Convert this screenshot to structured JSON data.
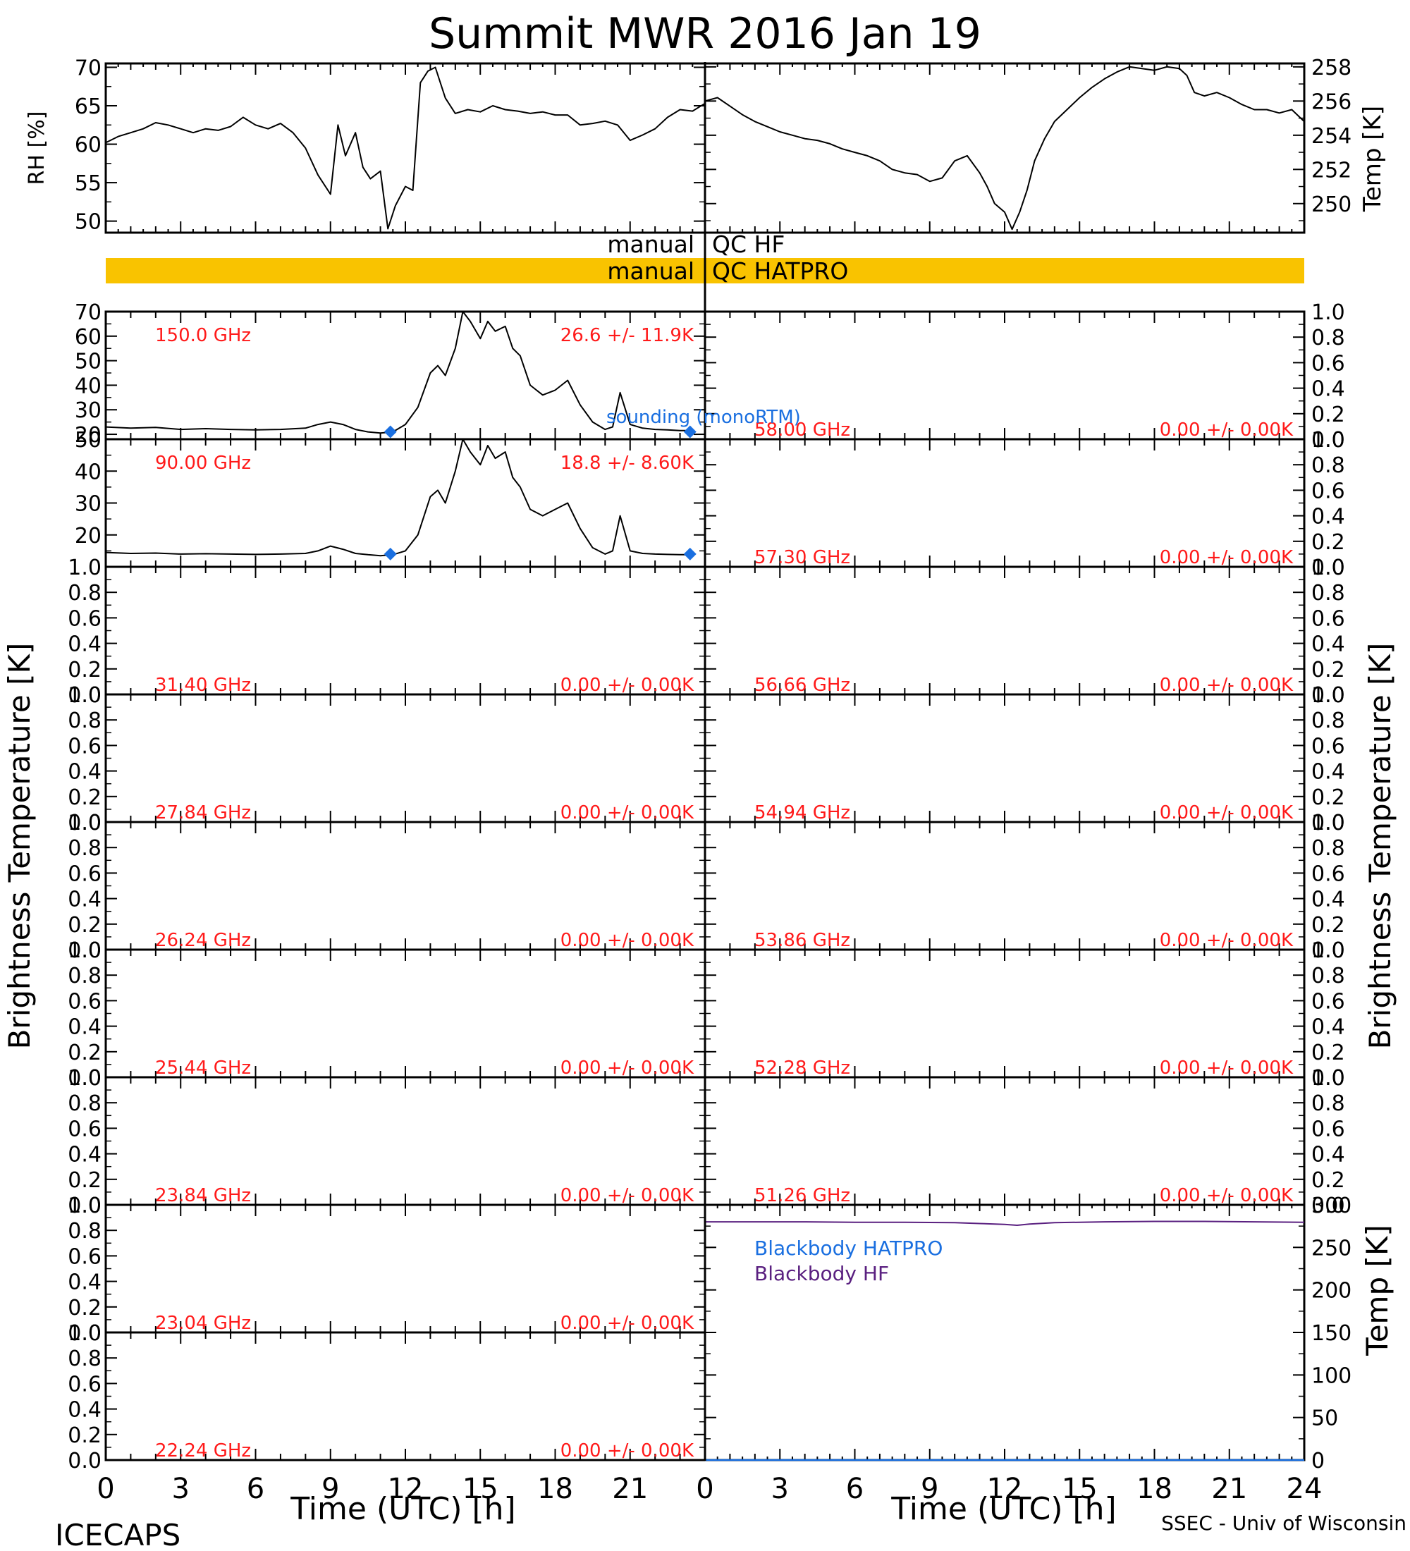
{
  "title": "Summit MWR 2016 Jan 19",
  "footer": {
    "left": "ICECAPS",
    "right": "SSEC - Univ of Wisconsin"
  },
  "colors": {
    "qc_bar": "#f9c300",
    "red_text": "#ff1a1a",
    "blue": "#1a6fe0",
    "purple": "#5a2080",
    "axis": "#000000"
  },
  "chart_data": [
    {
      "type": "line",
      "name": "rh",
      "ylabel": "RH [%]",
      "xlim": [
        0,
        24
      ],
      "ylim": [
        48.5,
        70.5
      ],
      "yticks": [
        50,
        55,
        60,
        65,
        70
      ],
      "x": [
        0,
        0.5,
        1,
        1.5,
        2,
        2.5,
        3,
        3.5,
        4,
        4.5,
        5,
        5.5,
        6,
        6.5,
        7,
        7.5,
        8,
        8.5,
        9,
        9.3,
        9.6,
        10,
        10.3,
        10.6,
        11,
        11.3,
        11.6,
        12,
        12.3,
        12.6,
        12.9,
        13.2,
        13.6,
        14,
        14.5,
        15,
        15.5,
        16,
        16.5,
        17,
        17.5,
        18,
        18.5,
        19,
        19.5,
        20,
        20.5,
        21,
        21.5,
        22,
        22.5,
        23,
        23.5,
        24
      ],
      "values": [
        60.2,
        61,
        61.5,
        62,
        62.8,
        62.5,
        62,
        61.5,
        62,
        61.8,
        62.3,
        63.5,
        62.5,
        62,
        62.7,
        61.5,
        59.5,
        56,
        53.5,
        62.5,
        58.5,
        61.5,
        57,
        55.5,
        56.5,
        49,
        52,
        54.5,
        54,
        68,
        69.5,
        70,
        66,
        64,
        64.5,
        64.2,
        65,
        64.5,
        64.3,
        64,
        64.2,
        63.8,
        63.8,
        62.5,
        62.7,
        63,
        62.5,
        60.5,
        61.2,
        62,
        63.5,
        64.5,
        64.3,
        65.3
      ]
    },
    {
      "type": "line",
      "name": "temp",
      "ylabel": "Temp [K]",
      "xlim": [
        0,
        24
      ],
      "ylim": [
        248.3,
        258.2
      ],
      "yticks": [
        250,
        252,
        254,
        256,
        258
      ],
      "x": [
        0,
        0.5,
        1,
        1.5,
        2,
        2.5,
        3,
        3.5,
        4,
        4.5,
        5,
        5.5,
        6,
        6.5,
        7,
        7.5,
        8,
        8.5,
        9,
        9.5,
        10,
        10.5,
        11,
        11.3,
        11.6,
        12,
        12.3,
        12.6,
        12.9,
        13.2,
        13.6,
        14,
        14.5,
        15,
        15.5,
        16,
        16.5,
        17,
        17.5,
        18,
        18.5,
        19,
        19.3,
        19.6,
        20,
        20.5,
        21,
        21.5,
        22,
        22.5,
        23,
        23.5,
        24
      ],
      "values": [
        256,
        256.2,
        255.7,
        255.2,
        254.8,
        254.5,
        254.2,
        254,
        253.8,
        253.7,
        253.5,
        253.2,
        253,
        252.8,
        252.5,
        252,
        251.8,
        251.7,
        251.3,
        251.5,
        252.5,
        252.8,
        251.8,
        251,
        250,
        249.5,
        248.5,
        249.5,
        250.8,
        252.5,
        253.8,
        254.8,
        255.5,
        256.2,
        256.8,
        257.3,
        257.7,
        258,
        257.9,
        257.8,
        258,
        257.9,
        257.5,
        256.5,
        256.3,
        256.5,
        256.2,
        255.8,
        255.5,
        255.5,
        255.3,
        255.5,
        254.8
      ]
    },
    {
      "type": "line",
      "name": "ch150",
      "freq_label": "150.0 GHz",
      "stat_label": "26.6 +/-  11.9K",
      "ylim": [
        18,
        70
      ],
      "yticks": [
        20,
        30,
        40,
        50,
        60,
        70
      ],
      "x": [
        0,
        1,
        2,
        3,
        4,
        5,
        6,
        7,
        8,
        8.5,
        9,
        9.5,
        10,
        10.5,
        11,
        11.5,
        12,
        12.5,
        13,
        13.3,
        13.6,
        14,
        14.3,
        14.6,
        15,
        15.3,
        15.6,
        16,
        16.3,
        16.6,
        17,
        17.5,
        18,
        18.5,
        19,
        19.5,
        20,
        20.3,
        20.6,
        21,
        21.5,
        22,
        22.5,
        23,
        23.5
      ],
      "values": [
        23,
        22.5,
        22.8,
        22,
        22.3,
        22,
        21.8,
        22,
        22.5,
        24,
        25,
        24,
        22,
        21,
        20.5,
        21,
        24,
        31,
        45,
        48,
        44,
        55,
        70,
        66,
        59,
        66,
        62,
        64,
        55,
        52,
        40,
        36,
        38,
        42,
        32,
        25,
        22,
        23,
        37,
        24,
        22.5,
        22,
        21.8,
        21.5,
        21.5
      ],
      "markers": {
        "x": [
          11.4,
          23.4
        ],
        "values": [
          21,
          21
        ]
      },
      "marker_label": "sounding (monoRTM)"
    },
    {
      "type": "line",
      "name": "ch90",
      "freq_label": "90.00 GHz",
      "stat_label": "18.8 +/-  8.60K",
      "ylim": [
        10,
        50
      ],
      "yticks": [
        20,
        30,
        40,
        50
      ],
      "x": [
        0,
        1,
        2,
        3,
        4,
        5,
        6,
        7,
        8,
        8.5,
        9,
        9.5,
        10,
        10.5,
        11,
        11.5,
        12,
        12.5,
        13,
        13.3,
        13.6,
        14,
        14.3,
        14.6,
        15,
        15.3,
        15.6,
        16,
        16.3,
        16.6,
        17,
        17.5,
        18,
        18.5,
        19,
        19.5,
        20,
        20.3,
        20.6,
        21,
        21.5,
        22,
        22.5,
        23,
        23.5
      ],
      "values": [
        14.5,
        14.2,
        14.3,
        14,
        14.1,
        14,
        13.9,
        14,
        14.2,
        15,
        16.5,
        15.5,
        14.2,
        13.8,
        13.5,
        13.8,
        15,
        20,
        32,
        34,
        30,
        40,
        50,
        46,
        42,
        48,
        44,
        46,
        38,
        35,
        28,
        26,
        28,
        30,
        22,
        16,
        14,
        15,
        26,
        15,
        14.2,
        14,
        13.9,
        13.8,
        13.8
      ],
      "markers": {
        "x": [
          11.4,
          23.4
        ],
        "values": [
          14,
          14
        ]
      }
    },
    {
      "type": "line",
      "name": "ch3140",
      "freq_label": "31.40 GHz",
      "stat_label": "0.00 +/-  0.00K",
      "ylim": [
        0,
        1
      ],
      "yticks": [
        0.0,
        0.2,
        0.4,
        0.6,
        0.8,
        1.0
      ]
    },
    {
      "type": "line",
      "name": "ch2784",
      "freq_label": "27.84 GHz",
      "stat_label": "0.00 +/-  0.00K",
      "ylim": [
        0,
        1
      ],
      "yticks": [
        0.0,
        0.2,
        0.4,
        0.6,
        0.8,
        1.0
      ]
    },
    {
      "type": "line",
      "name": "ch2624",
      "freq_label": "26.24 GHz",
      "stat_label": "0.00 +/-  0.00K",
      "ylim": [
        0,
        1
      ],
      "yticks": [
        0.0,
        0.2,
        0.4,
        0.6,
        0.8,
        1.0
      ]
    },
    {
      "type": "line",
      "name": "ch2544",
      "freq_label": "25.44 GHz",
      "stat_label": "0.00 +/-  0.00K",
      "ylim": [
        0,
        1
      ],
      "yticks": [
        0.0,
        0.2,
        0.4,
        0.6,
        0.8,
        1.0
      ]
    },
    {
      "type": "line",
      "name": "ch2384",
      "freq_label": "23.84 GHz",
      "stat_label": "0.00 +/-  0.00K",
      "ylim": [
        0,
        1
      ],
      "yticks": [
        0.0,
        0.2,
        0.4,
        0.6,
        0.8,
        1.0
      ]
    },
    {
      "type": "line",
      "name": "ch2304",
      "freq_label": "23.04 GHz",
      "stat_label": "0.00 +/-  0.00K",
      "ylim": [
        0,
        1
      ],
      "yticks": [
        0.0,
        0.2,
        0.4,
        0.6,
        0.8,
        1.0
      ]
    },
    {
      "type": "line",
      "name": "ch2224",
      "freq_label": "22.24 GHz",
      "stat_label": "0.00 +/-  0.00K",
      "ylim": [
        0,
        1
      ],
      "yticks": [
        0.0,
        0.2,
        0.4,
        0.6,
        0.8,
        1.0
      ]
    },
    {
      "type": "line",
      "name": "ch5800",
      "freq_label": "58.00 GHz",
      "stat_label": "0.00 +/-  0.00K",
      "ylim": [
        0,
        1
      ],
      "yticks": [
        0.0,
        0.2,
        0.4,
        0.6,
        0.8,
        1.0
      ]
    },
    {
      "type": "line",
      "name": "ch5730",
      "freq_label": "57.30 GHz",
      "stat_label": "0.00 +/-  0.00K",
      "ylim": [
        0,
        1
      ],
      "yticks": [
        0.0,
        0.2,
        0.4,
        0.6,
        0.8,
        1.0
      ]
    },
    {
      "type": "line",
      "name": "ch5666",
      "freq_label": "56.66 GHz",
      "stat_label": "0.00 +/-  0.00K",
      "ylim": [
        0,
        1
      ],
      "yticks": [
        0.0,
        0.2,
        0.4,
        0.6,
        0.8,
        1.0
      ]
    },
    {
      "type": "line",
      "name": "ch5494",
      "freq_label": "54.94 GHz",
      "stat_label": "0.00 +/-  0.00K",
      "ylim": [
        0,
        1
      ],
      "yticks": [
        0.0,
        0.2,
        0.4,
        0.6,
        0.8,
        1.0
      ]
    },
    {
      "type": "line",
      "name": "ch5386",
      "freq_label": "53.86 GHz",
      "stat_label": "0.00 +/-  0.00K",
      "ylim": [
        0,
        1
      ],
      "yticks": [
        0.0,
        0.2,
        0.4,
        0.6,
        0.8,
        1.0
      ]
    },
    {
      "type": "line",
      "name": "ch5228",
      "freq_label": "52.28 GHz",
      "stat_label": "0.00 +/-  0.00K",
      "ylim": [
        0,
        1
      ],
      "yticks": [
        0.0,
        0.2,
        0.4,
        0.6,
        0.8,
        1.0
      ]
    },
    {
      "type": "line",
      "name": "ch5126",
      "freq_label": "51.26 GHz",
      "stat_label": "0.00 +/-  0.00K",
      "ylim": [
        0,
        1
      ],
      "yticks": [
        0.0,
        0.2,
        0.4,
        0.6,
        0.8,
        1.0
      ]
    },
    {
      "type": "line",
      "name": "blackbody",
      "ylabel": "Temp [K]",
      "xlim": [
        0,
        24
      ],
      "ylim": [
        0,
        300
      ],
      "yticks": [
        0,
        50,
        100,
        150,
        200,
        250,
        300
      ],
      "series": [
        {
          "name": "Blackbody HATPRO",
          "x": [
            0,
            24
          ],
          "values": [
            0,
            0
          ]
        },
        {
          "name": "Blackbody HF",
          "x": [
            0,
            2,
            4,
            6,
            8,
            10,
            11,
            12,
            12.5,
            13,
            14,
            16,
            18,
            20,
            22,
            24
          ],
          "values": [
            280,
            280,
            280,
            279.5,
            279.5,
            279,
            278,
            277,
            276,
            277.5,
            279,
            280,
            280.5,
            280.5,
            280,
            279.5
          ]
        }
      ]
    }
  ],
  "time_axis": {
    "xlabel": "Time (UTC) [h]",
    "ticks_left": [
      0,
      3,
      6,
      9,
      12,
      15,
      18,
      21
    ],
    "ticks_right": [
      0,
      3,
      6,
      9,
      12,
      15,
      18,
      21,
      24
    ]
  },
  "ylabel_tb": "Brightness Temperature [K]",
  "qc": {
    "hf_label_a": "manual",
    "hf_label_b": "QC HF",
    "hatpro_label_a": "manual",
    "hatpro_label_b": "QC HATPRO"
  }
}
